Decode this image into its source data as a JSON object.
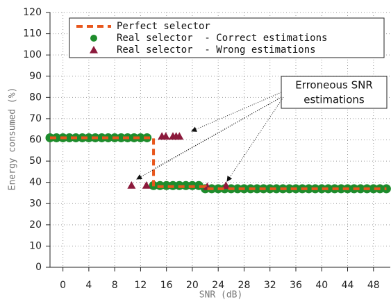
{
  "chart_data": {
    "type": "line",
    "x_label": "SNR (dB)",
    "y_label": "Energy consumed (%)",
    "xlim": [
      -2,
      50.6
    ],
    "ylim": [
      0,
      120
    ],
    "xticks": [
      0,
      4,
      8,
      12,
      16,
      20,
      24,
      28,
      32,
      36,
      40,
      44,
      48
    ],
    "yticks": [
      0,
      10,
      20,
      30,
      40,
      50,
      60,
      70,
      80,
      90,
      100,
      110,
      120
    ],
    "grid": true,
    "legend": "top",
    "annotation": {
      "lines": [
        "Erroneous SNR",
        "estimations"
      ]
    },
    "series": [
      {
        "name": "Perfect selector",
        "type": "line",
        "color": "#e8561c",
        "x": [
          -2,
          14,
          14,
          22,
          22,
          50
        ],
        "values": [
          61,
          61,
          38,
          38,
          37,
          37
        ]
      },
      {
        "name": "Real selector  - Correct estimations",
        "type": "scatter",
        "marker": "circle",
        "color": "#1e8c2c",
        "x": [
          -2,
          -1,
          0,
          1,
          2,
          3,
          4,
          5,
          6,
          7,
          8,
          9,
          10,
          11,
          12,
          13,
          14,
          15,
          16,
          17,
          18,
          19,
          20,
          21,
          22,
          23,
          24,
          25,
          26,
          27,
          28,
          29,
          30,
          31,
          32,
          33,
          34,
          35,
          36,
          37,
          38,
          39,
          40,
          41,
          42,
          43,
          44,
          45,
          46,
          47,
          48,
          49,
          50
        ],
        "values": [
          61,
          61,
          61,
          61,
          61,
          61,
          61,
          61,
          61,
          61,
          61,
          61,
          61,
          61,
          61,
          61,
          38.5,
          38.5,
          38.5,
          38.5,
          38.5,
          38.5,
          38.5,
          38.5,
          37,
          37,
          37,
          37,
          37,
          37,
          37,
          37,
          37,
          37,
          37,
          37,
          37,
          37,
          37,
          37,
          37,
          37,
          37,
          37,
          37,
          37,
          37,
          37,
          37,
          37,
          37,
          37,
          37
        ]
      },
      {
        "name": "Real selector  - Wrong estimations",
        "type": "scatter",
        "marker": "triangle",
        "color": "#8c1a3c",
        "x": [
          10.6,
          12.9,
          15.3,
          15.9,
          17,
          17.5,
          18,
          22.3,
          25.2
        ],
        "values": [
          38.6,
          38.6,
          61.7,
          61.7,
          61.7,
          61.7,
          61.7,
          38,
          38.5
        ]
      }
    ]
  }
}
